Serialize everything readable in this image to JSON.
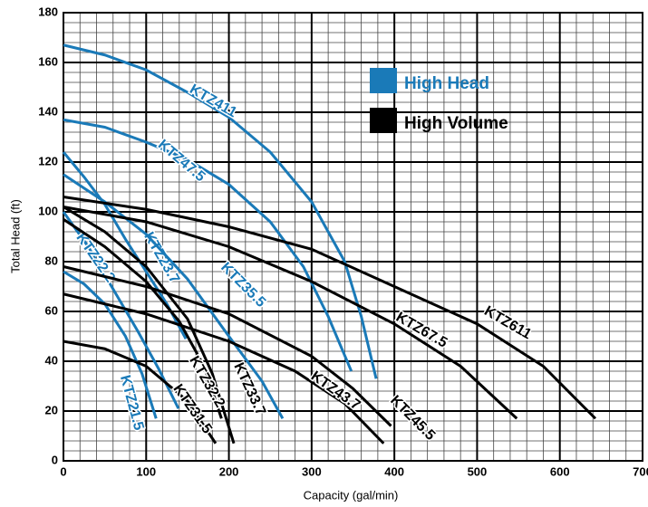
{
  "chart_data": {
    "type": "line",
    "xlabel": "Capacity (gal/min)",
    "ylabel": "Total Head (ft)",
    "xlim": [
      0,
      700
    ],
    "ylim": [
      0,
      180
    ],
    "xticks": [
      0,
      100,
      200,
      300,
      400,
      500,
      600,
      700
    ],
    "yticks": [
      0,
      20,
      40,
      60,
      80,
      100,
      120,
      140,
      160,
      180
    ],
    "xminorticks": [
      20,
      40,
      60,
      80,
      120,
      140,
      160,
      180,
      220,
      240,
      260,
      280,
      320,
      340,
      360,
      380,
      420,
      440,
      460,
      480,
      520,
      540,
      560,
      580,
      620,
      640,
      660,
      680
    ],
    "yminorticks": [
      4,
      8,
      12,
      16,
      24,
      28,
      32,
      36,
      44,
      48,
      52,
      56,
      64,
      68,
      72,
      76,
      84,
      88,
      92,
      96,
      104,
      108,
      112,
      116,
      124,
      128,
      132,
      136,
      144,
      148,
      152,
      156,
      164,
      168,
      172,
      176
    ],
    "grid": true,
    "legend": [
      {
        "label": "High Head",
        "color": "#1a7ab8"
      },
      {
        "label": "High Volume",
        "color": "#000000"
      }
    ],
    "series": [
      {
        "name": "KTZ411",
        "color": "#1a7ab8",
        "x": [
          0,
          50,
          100,
          150,
          200,
          250,
          300,
          340,
          360,
          378
        ],
        "values": [
          167,
          163,
          157,
          148,
          138,
          124,
          104,
          80,
          58,
          33
        ]
      },
      {
        "name": "KTZ47.5",
        "color": "#1a7ab8",
        "x": [
          0,
          50,
          100,
          150,
          200,
          250,
          290,
          320,
          348
        ],
        "values": [
          137,
          134,
          128,
          121,
          111,
          96,
          78,
          58,
          36
        ]
      },
      {
        "name": "KTZ23.7",
        "color": "#1a7ab8",
        "x": [
          0,
          25,
          50,
          75,
          100,
          125,
          148
        ],
        "values": [
          124,
          114,
          103,
          89,
          76,
          63,
          49
        ]
      },
      {
        "name": "KTZ35.5",
        "color": "#1a7ab8",
        "x": [
          0,
          50,
          100,
          150,
          200,
          240,
          265
        ],
        "values": [
          115,
          104,
          91,
          73,
          50,
          32,
          17
        ]
      },
      {
        "name": "KTZ22.2",
        "color": "#1a7ab8",
        "x": [
          0,
          30,
          60,
          90,
          115,
          139
        ],
        "values": [
          100,
          86,
          69,
          52,
          37,
          21
        ]
      },
      {
        "name": "KTZ21.5",
        "color": "#1a7ab8",
        "x": [
          0,
          25,
          50,
          75,
          95,
          112
        ],
        "values": [
          76,
          71,
          63,
          50,
          35,
          17
        ]
      },
      {
        "name": "KTZ611",
        "color": "#000000",
        "x": [
          0,
          100,
          200,
          300,
          400,
          500,
          580,
          643
        ],
        "values": [
          106,
          101,
          94,
          85,
          70,
          55,
          38,
          17
        ]
      },
      {
        "name": "KTZ67.5",
        "color": "#000000",
        "x": [
          0,
          100,
          200,
          300,
          400,
          480,
          548
        ],
        "values": [
          102,
          96,
          86,
          72,
          55,
          38,
          17
        ]
      },
      {
        "name": "KTZ45.5",
        "color": "#000000",
        "x": [
          0,
          100,
          200,
          300,
          350,
          396
        ],
        "values": [
          78,
          70,
          59,
          42,
          29,
          14
        ]
      },
      {
        "name": "KTZ43.7",
        "color": "#000000",
        "x": [
          0,
          100,
          200,
          280,
          340,
          387
        ],
        "values": [
          67,
          59,
          48,
          36,
          23,
          7
        ]
      },
      {
        "name": "KTZ33.7",
        "color": "#000000",
        "x": [
          0,
          50,
          100,
          150,
          180,
          206
        ],
        "values": [
          102,
          92,
          78,
          57,
          35,
          7
        ]
      },
      {
        "name": "KTZ32.2",
        "color": "#000000",
        "x": [
          0,
          50,
          100,
          140,
          170,
          191
        ],
        "values": [
          97,
          86,
          72,
          56,
          38,
          17
        ]
      },
      {
        "name": "KTZ31.5",
        "color": "#000000",
        "x": [
          0,
          50,
          100,
          150,
          184
        ],
        "values": [
          48,
          45,
          38,
          24,
          7
        ]
      }
    ]
  }
}
